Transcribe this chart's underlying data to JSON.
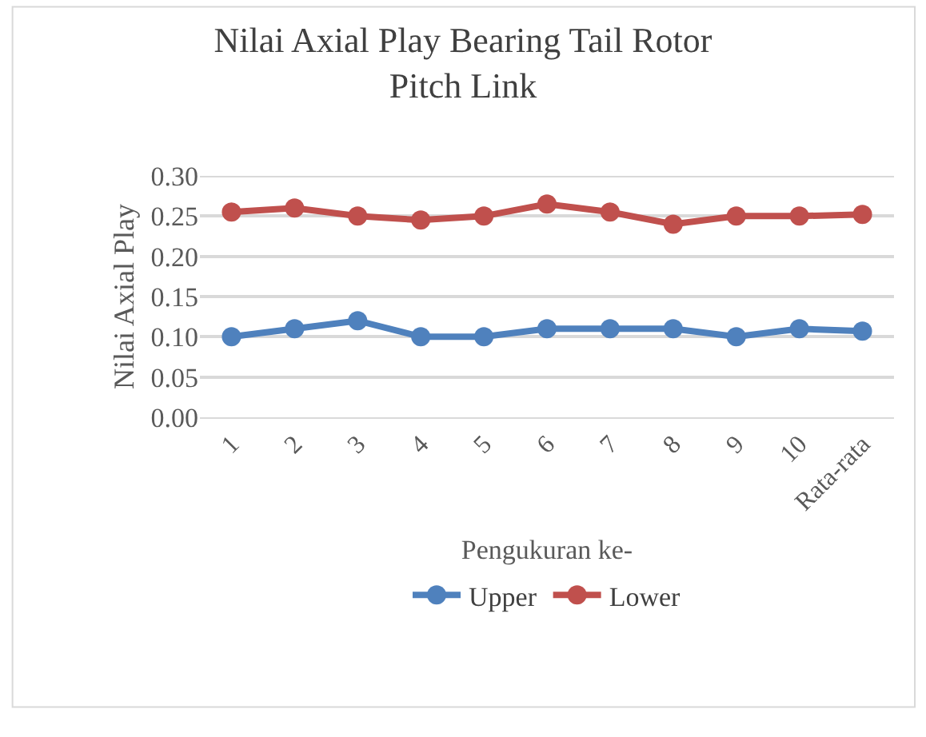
{
  "chart_data": {
    "type": "line",
    "title": "Nilai Axial Play Bearing Tail Rotor Pitch Link",
    "xlabel": "Pengukuran ke-",
    "ylabel": "Nilai Axial Play",
    "categories": [
      "1",
      "2",
      "3",
      "4",
      "5",
      "6",
      "7",
      "8",
      "9",
      "10",
      "Rata-rata"
    ],
    "series": [
      {
        "name": "Upper",
        "color": "#4f81bd",
        "values": [
          0.1,
          0.11,
          0.12,
          0.1,
          0.1,
          0.11,
          0.11,
          0.11,
          0.1,
          0.11,
          0.107
        ]
      },
      {
        "name": "Lower",
        "color": "#c0504d",
        "values": [
          0.255,
          0.26,
          0.25,
          0.245,
          0.25,
          0.265,
          0.255,
          0.24,
          0.25,
          0.25,
          0.252
        ]
      }
    ],
    "ylim": [
      0,
      0.3
    ],
    "yticks": [
      {
        "value": 0,
        "label": "0.00"
      },
      {
        "value": 0.05,
        "label": "0.05"
      },
      {
        "value": 0.1,
        "label": "0.10"
      },
      {
        "value": 0.15,
        "label": "0.15"
      },
      {
        "value": 0.2,
        "label": "0.20"
      },
      {
        "value": 0.25,
        "label": "0.25"
      },
      {
        "value": 0.3,
        "label": "0.30"
      }
    ],
    "grid": "y",
    "legend": "bottom",
    "marker": "circle",
    "line_style": "solid"
  }
}
